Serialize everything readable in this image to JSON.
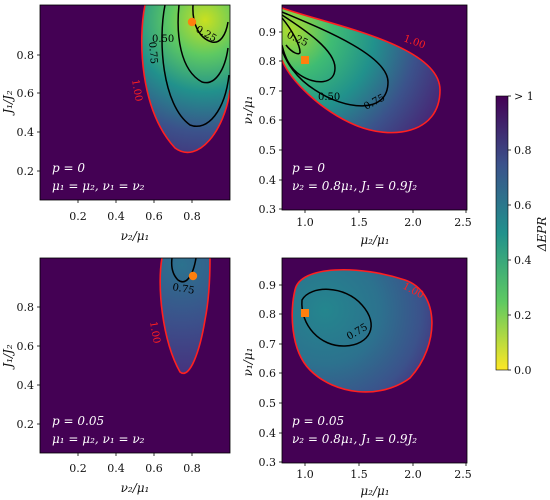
{
  "chart_data": [
    {
      "type": "heatmap",
      "panel": "top-left",
      "xlabel": "ν₂/μ₁",
      "ylabel": "J₁/J₂",
      "xlim": [
        0.0,
        1.0
      ],
      "ylim": [
        0.0,
        1.0
      ],
      "xticks": [
        "0.2",
        "0.4",
        "0.6",
        "0.8"
      ],
      "yticks": [
        "0.2",
        "0.4",
        "0.6",
        "0.8"
      ],
      "annotation": [
        "p = 0",
        "μ₁ = μ₂, ν₁ = ν₂"
      ],
      "contours": [
        {
          "level": "1.00",
          "color": "red"
        },
        {
          "level": "0.75",
          "color": "black"
        },
        {
          "level": "0.50",
          "color": "black"
        },
        {
          "level": "0.25",
          "color": "black"
        }
      ],
      "marker": {
        "shape": "circle",
        "x": 0.8,
        "y": 0.9,
        "color": "#ff7f0e"
      }
    },
    {
      "type": "heatmap",
      "panel": "top-right",
      "xlabel": "μ₂/μ₁",
      "ylabel": "ν₁/μ₁",
      "xlim": [
        0.8,
        2.5
      ],
      "ylim": [
        0.3,
        0.97
      ],
      "xticks": [
        "1.0",
        "1.5",
        "2.0",
        "2.5"
      ],
      "yticks": [
        "0.3",
        "0.4",
        "0.5",
        "0.6",
        "0.7",
        "0.8",
        "0.9"
      ],
      "annotation": [
        "p = 0",
        "ν₂ = 0.8μ₁, J₁ = 0.9J₂"
      ],
      "contours": [
        {
          "level": "1.00",
          "color": "red"
        },
        {
          "level": "0.75",
          "color": "black"
        },
        {
          "level": "0.50",
          "color": "black"
        },
        {
          "level": "0.25",
          "color": "black"
        }
      ],
      "marker": {
        "shape": "square",
        "x": 1.0,
        "y": 0.8,
        "color": "#ff7f0e"
      }
    },
    {
      "type": "heatmap",
      "panel": "bottom-left",
      "xlabel": "ν₂/μ₁",
      "ylabel": "J₁/J₂",
      "xlim": [
        0.0,
        1.0
      ],
      "ylim": [
        0.0,
        1.0
      ],
      "xticks": [
        "0.2",
        "0.4",
        "0.6",
        "0.8"
      ],
      "yticks": [
        "0.2",
        "0.4",
        "0.6",
        "0.8"
      ],
      "annotation": [
        "p = 0.05",
        "μ₁ = μ₂, ν₁ = ν₂"
      ],
      "contours": [
        {
          "level": "1.00",
          "color": "red"
        },
        {
          "level": "0.75",
          "color": "black"
        }
      ],
      "marker": {
        "shape": "circle",
        "x": 0.8,
        "y": 0.9,
        "color": "#ff7f0e"
      }
    },
    {
      "type": "heatmap",
      "panel": "bottom-right",
      "xlabel": "μ₂/μ₁",
      "ylabel": "ν₁/μ₁",
      "xlim": [
        0.8,
        2.5
      ],
      "ylim": [
        0.3,
        0.97
      ],
      "xticks": [
        "1.0",
        "1.5",
        "2.0",
        "2.5"
      ],
      "yticks": [
        "0.3",
        "0.4",
        "0.5",
        "0.6",
        "0.7",
        "0.8",
        "0.9"
      ],
      "annotation": [
        "p = 0.05",
        "ν₂ = 0.8μ₁, J₁ = 0.9J₂"
      ],
      "contours": [
        {
          "level": "1.00",
          "color": "red"
        },
        {
          "level": "0.75",
          "color": "black"
        }
      ],
      "marker": {
        "shape": "square",
        "x": 1.0,
        "y": 0.8,
        "color": "#ff7f0e"
      }
    }
  ],
  "colorbar": {
    "label": "ΔEPR",
    "ticks": [
      "0.0",
      "0.2",
      "0.4",
      "0.6",
      "0.8",
      "> 1"
    ],
    "colormap": "viridis-reversed",
    "range": [
      0,
      1
    ]
  }
}
